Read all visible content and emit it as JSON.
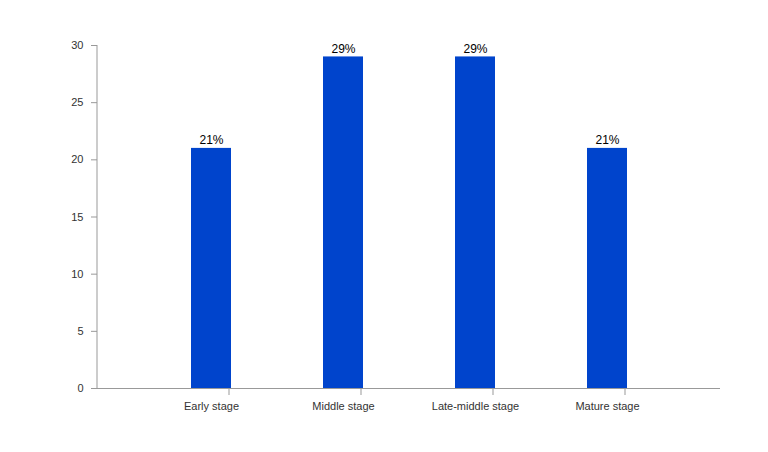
{
  "chart_data": {
    "type": "bar",
    "categories": [
      "Early stage",
      "Middle stage",
      "Late-middle stage",
      "Mature stage"
    ],
    "values": [
      21,
      29,
      29,
      21
    ],
    "value_labels": [
      "21%",
      "29%",
      "29%",
      "21%"
    ],
    "data_labels": true,
    "color": "#0044cc",
    "ylim": [
      0,
      30
    ],
    "yticks": [
      0,
      5,
      10,
      15,
      20,
      25,
      30
    ],
    "grid": false
  }
}
